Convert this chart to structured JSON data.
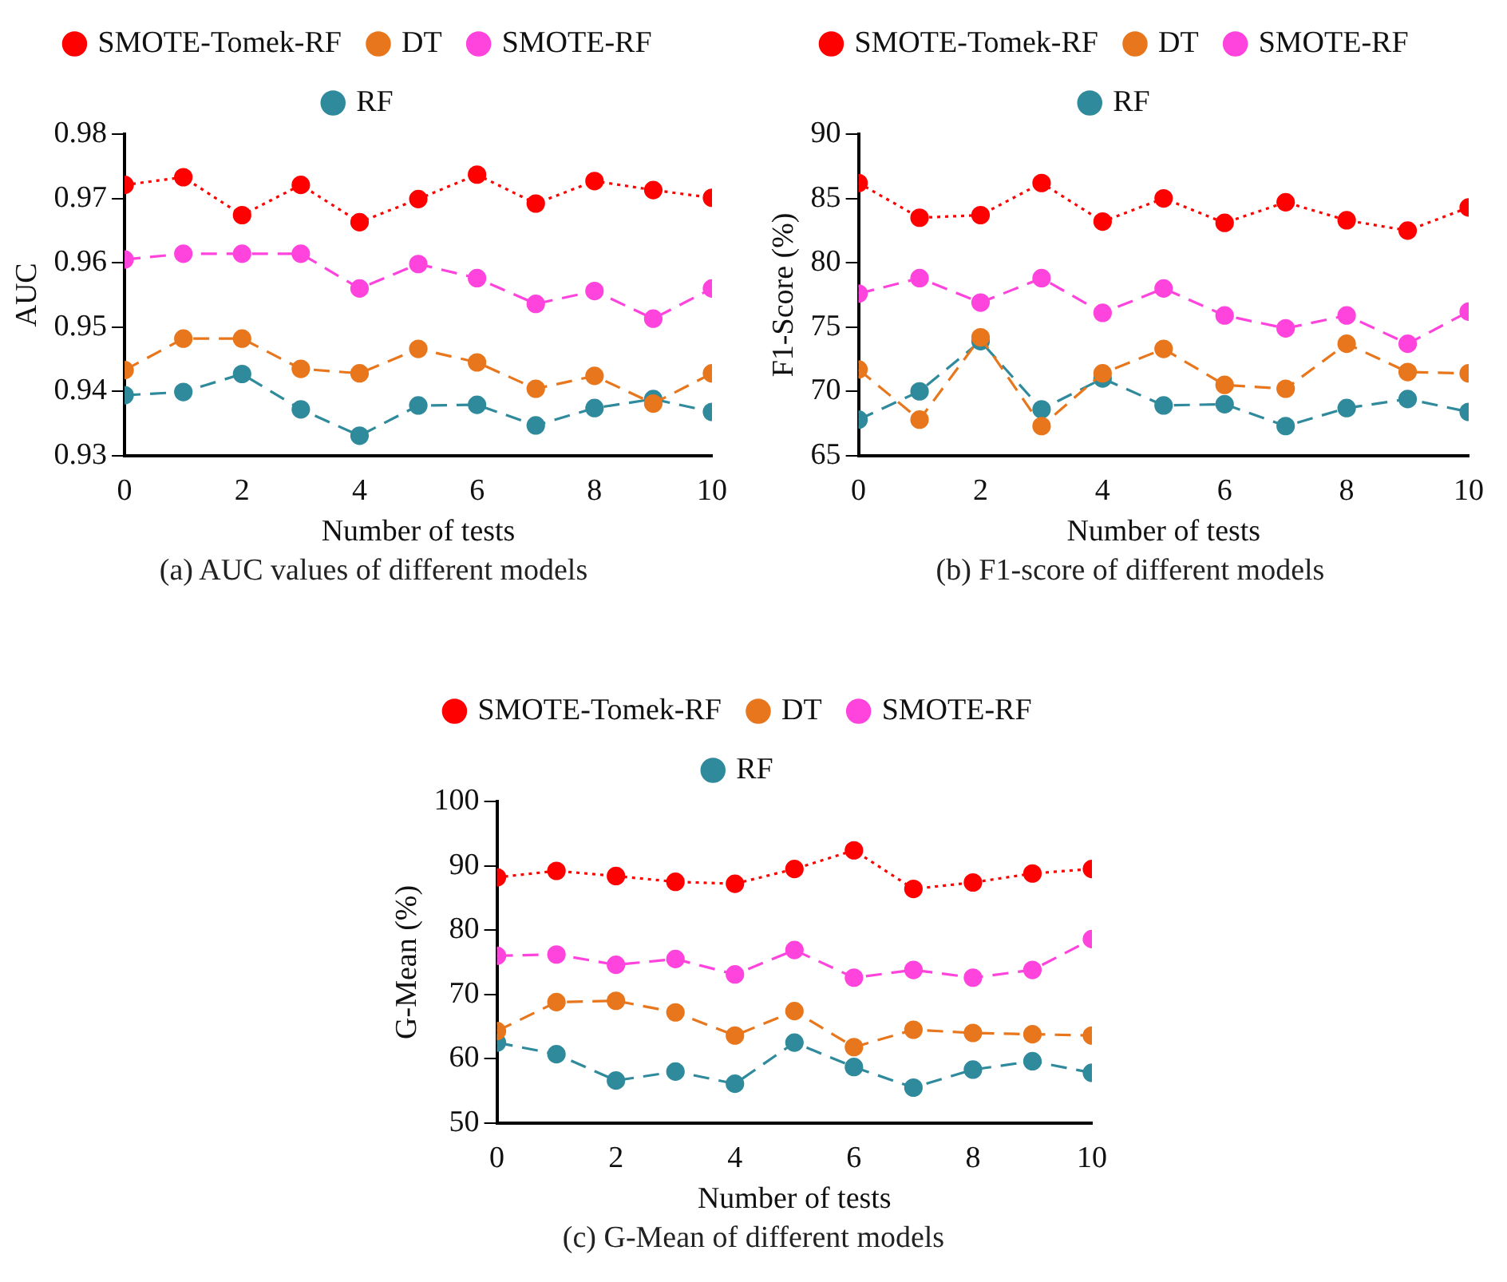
{
  "chart_data": [
    {
      "type": "line",
      "xlabel": "Number of tests",
      "ylabel": "AUC",
      "annotations": [
        "(a) AUC values of different models"
      ],
      "x": [
        0,
        1,
        2,
        3,
        4,
        5,
        6,
        7,
        8,
        9,
        10
      ],
      "xlim": [
        0,
        10
      ],
      "xticks": [
        0,
        2,
        4,
        6,
        8,
        10
      ],
      "ylim": [
        0.93,
        0.98
      ],
      "yticks": [
        {
          "value": 0.93,
          "label": "0.93"
        },
        {
          "value": 0.94,
          "label": "0.94"
        },
        {
          "value": 0.95,
          "label": "0.95"
        },
        {
          "value": 0.96,
          "label": "0.96"
        },
        {
          "value": 0.97,
          "label": "0.97"
        },
        {
          "value": 0.98,
          "label": "0.98"
        }
      ],
      "grid": false,
      "legend": "top",
      "marker": "circle",
      "series": [
        {
          "name": "RF",
          "color": "#2f8a9c",
          "line_style": "dashed",
          "values": [
            0.9394,
            0.9399,
            0.9427,
            0.9372,
            0.9331,
            0.9378,
            0.9379,
            0.9347,
            0.9374,
            0.9388,
            0.9368
          ]
        },
        {
          "name": "SMOTE-RF",
          "color": "#ff44dd",
          "line_style": "dashed",
          "values": [
            0.9605,
            0.9614,
            0.9614,
            0.9614,
            0.956,
            0.9598,
            0.9576,
            0.9536,
            0.9556,
            0.9513,
            0.956
          ]
        },
        {
          "name": "DT",
          "color": "#e8761c",
          "line_style": "dashed",
          "values": [
            0.9433,
            0.9482,
            0.9482,
            0.9435,
            0.9428,
            0.9466,
            0.9445,
            0.9404,
            0.9424,
            0.9381,
            0.9428
          ]
        },
        {
          "name": "SMOTE-Tomek-RF",
          "color": "#ff0000",
          "line_style": "dotted",
          "values": [
            0.9721,
            0.9733,
            0.9674,
            0.9721,
            0.9663,
            0.9699,
            0.9737,
            0.9692,
            0.9727,
            0.9713,
            0.9701
          ]
        }
      ]
    },
    {
      "type": "line",
      "xlabel": "Number of tests",
      "ylabel": "F1-Score (%)",
      "annotations": [
        "(b) F1-score of different models"
      ],
      "x": [
        0,
        1,
        2,
        3,
        4,
        5,
        6,
        7,
        8,
        9,
        10
      ],
      "xlim": [
        0,
        10
      ],
      "xticks": [
        0,
        2,
        4,
        6,
        8,
        10
      ],
      "ylim": [
        65,
        90
      ],
      "yticks": [
        65,
        70,
        75,
        80,
        85,
        90
      ],
      "grid": false,
      "legend": "top",
      "marker": "circle",
      "series": [
        {
          "name": "RF",
          "color": "#2f8a9c",
          "line_style": "dashed",
          "values": [
            67.8,
            70.0,
            73.9,
            68.6,
            71.0,
            68.9,
            69.0,
            67.3,
            68.7,
            69.4,
            68.4
          ]
        },
        {
          "name": "SMOTE-RF",
          "color": "#ff44dd",
          "line_style": "dashed",
          "values": [
            77.6,
            78.8,
            76.9,
            78.8,
            76.1,
            78.0,
            75.9,
            74.9,
            75.9,
            73.7,
            76.2
          ]
        },
        {
          "name": "DT",
          "color": "#e8761c",
          "line_style": "dashed",
          "values": [
            71.7,
            67.8,
            74.2,
            67.3,
            71.4,
            73.3,
            70.5,
            70.2,
            73.7,
            71.5,
            71.4
          ]
        },
        {
          "name": "SMOTE-Tomek-RF",
          "color": "#ff0000",
          "line_style": "dotted",
          "values": [
            86.2,
            83.5,
            83.7,
            86.2,
            83.2,
            85.0,
            83.1,
            84.7,
            83.3,
            82.5,
            84.3
          ]
        }
      ]
    },
    {
      "type": "line",
      "xlabel": "Number of tests",
      "ylabel": "G-Mean (%)",
      "annotations": [
        "(c) G-Mean of different models"
      ],
      "x": [
        0,
        1,
        2,
        3,
        4,
        5,
        6,
        7,
        8,
        9,
        10
      ],
      "xlim": [
        0,
        10
      ],
      "xticks": [
        0,
        2,
        4,
        6,
        8,
        10
      ],
      "ylim": [
        50,
        100
      ],
      "yticks": [
        50,
        60,
        70,
        80,
        90,
        100
      ],
      "grid": false,
      "legend": "top",
      "marker": "circle",
      "series": [
        {
          "name": "RF",
          "color": "#2f8a9c",
          "line_style": "dashed",
          "values": [
            62.5,
            60.7,
            56.6,
            58.0,
            56.1,
            62.5,
            58.7,
            55.5,
            58.3,
            59.6,
            57.8
          ]
        },
        {
          "name": "SMOTE-RF",
          "color": "#ff44dd",
          "line_style": "dashed",
          "values": [
            76.0,
            76.2,
            74.6,
            75.5,
            73.1,
            76.9,
            72.6,
            73.8,
            72.6,
            73.8,
            78.6
          ]
        },
        {
          "name": "DT",
          "color": "#e8761c",
          "line_style": "dashed",
          "values": [
            64.3,
            68.8,
            69.0,
            67.2,
            63.6,
            67.4,
            61.8,
            64.5,
            64.0,
            63.8,
            63.6
          ]
        },
        {
          "name": "SMOTE-Tomek-RF",
          "color": "#ff0000",
          "line_style": "dotted",
          "values": [
            88.2,
            89.2,
            88.4,
            87.5,
            87.2,
            89.5,
            92.4,
            86.4,
            87.4,
            88.8,
            89.5
          ]
        }
      ]
    }
  ]
}
